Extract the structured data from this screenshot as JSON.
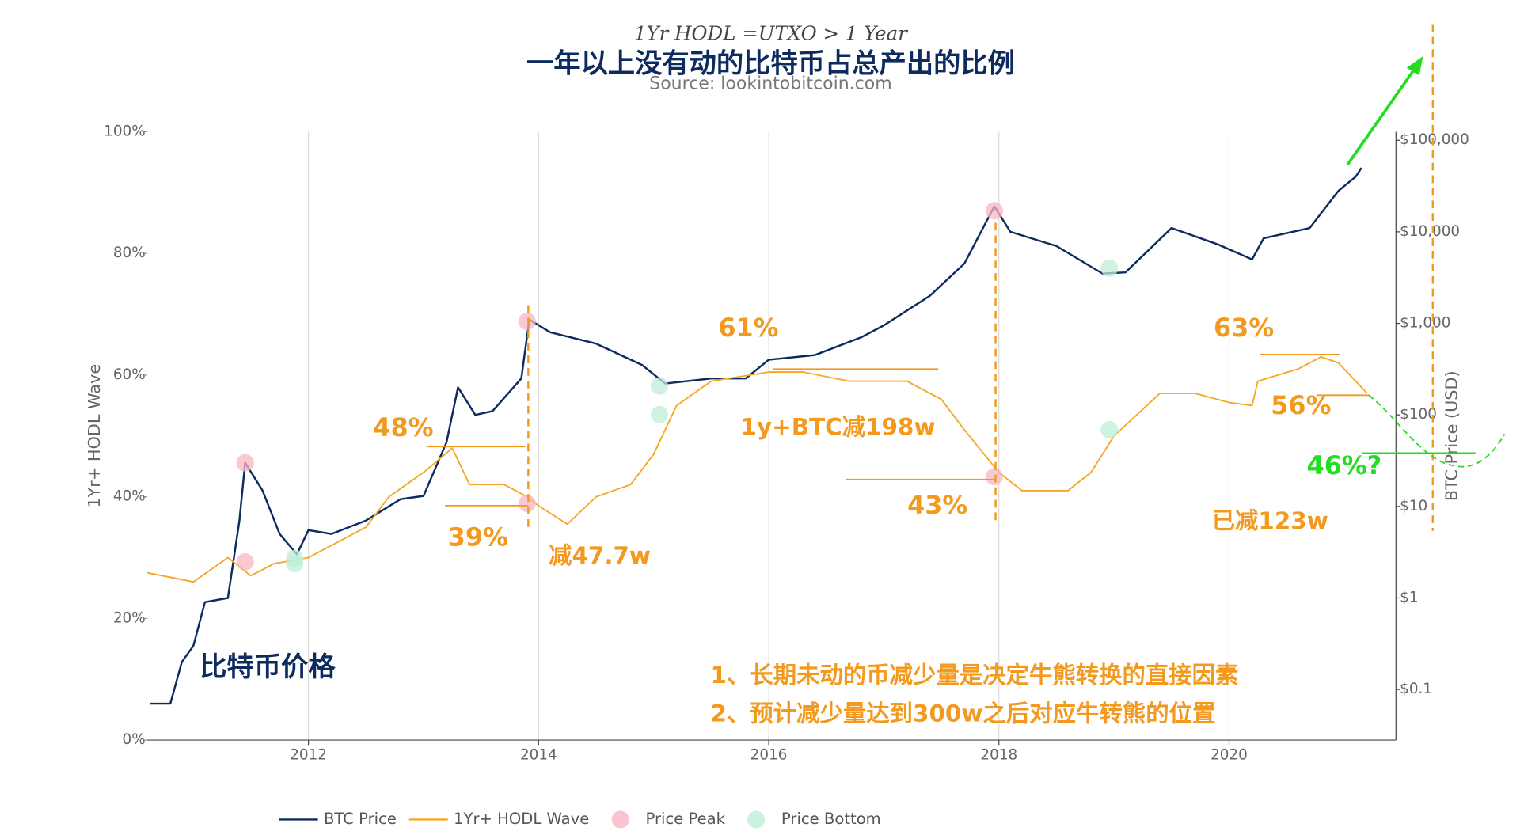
{
  "chart_data": {
    "type": "line",
    "formula": "1Yr HODL =UTXO > 1 Year",
    "title": "一年以上没有动的比特币占总产出的比例",
    "subtitle": "Source: lookintobitcoin.com",
    "ylabel": "1Yr+ HODL Wave",
    "y2label": "BTC Price (USD)",
    "xlim": [
      2010.6,
      2021.45
    ],
    "xticks": [
      2012,
      2014,
      2016,
      2018,
      2020
    ],
    "ylim": [
      0,
      100
    ],
    "yticks": [
      {
        "value": 0,
        "label": "0%"
      },
      {
        "value": 20,
        "label": "20%"
      },
      {
        "value": 40,
        "label": "40%"
      },
      {
        "value": 60,
        "label": "60%"
      },
      {
        "value": 80,
        "label": "80%"
      },
      {
        "value": 100,
        "label": "100%"
      }
    ],
    "y2lim": [
      0.028,
      124000
    ],
    "y2log": true,
    "y2ticks": [
      {
        "value": 0.1,
        "label": "$0.1"
      },
      {
        "value": 1,
        "label": "$1"
      },
      {
        "value": 10,
        "label": "$10"
      },
      {
        "value": 100,
        "label": "$100"
      },
      {
        "value": 1000,
        "label": "$1,000"
      },
      {
        "value": 10000,
        "label": "$10,000"
      },
      {
        "value": 100000,
        "label": "$100,000"
      }
    ],
    "grid": "x",
    "series": [
      {
        "name": "BTC Price",
        "color": "#0d2b5e",
        "axis": "y2",
        "x": [
          2010.62,
          2010.8,
          2010.9,
          2011.0,
          2011.1,
          2011.3,
          2011.4,
          2011.45,
          2011.6,
          2011.75,
          2011.9,
          2012.0,
          2012.2,
          2012.5,
          2012.8,
          2013.0,
          2013.2,
          2013.3,
          2013.45,
          2013.6,
          2013.85,
          2013.92,
          2014.1,
          2014.5,
          2014.9,
          2015.1,
          2015.5,
          2015.8,
          2016.0,
          2016.4,
          2016.8,
          2017.0,
          2017.4,
          2017.7,
          2017.96,
          2018.1,
          2018.5,
          2018.9,
          2019.1,
          2019.5,
          2019.9,
          2020.2,
          2020.3,
          2020.7,
          2020.95,
          2021.1,
          2021.15
        ],
        "values": [
          0.07,
          0.07,
          0.2,
          0.3,
          0.9,
          1.0,
          7,
          30,
          15,
          5,
          3,
          5.5,
          5,
          7,
          12,
          13,
          50,
          200,
          100,
          110,
          250,
          1100,
          800,
          600,
          350,
          220,
          250,
          250,
          400,
          450,
          700,
          950,
          2000,
          4500,
          19000,
          10000,
          7000,
          3500,
          3600,
          11000,
          7300,
          5000,
          8500,
          11000,
          28000,
          40000,
          50000
        ]
      },
      {
        "name": "1Yr+ HODL Wave",
        "color": "#f5a623",
        "axis": "y",
        "x": [
          2010.6,
          2011.0,
          2011.3,
          2011.5,
          2011.7,
          2012.0,
          2012.3,
          2012.5,
          2012.7,
          2013.0,
          2013.25,
          2013.4,
          2013.7,
          2013.9,
          2014.0,
          2014.25,
          2014.5,
          2014.8,
          2015.0,
          2015.2,
          2015.5,
          2016.0,
          2016.3,
          2016.7,
          2017.2,
          2017.5,
          2017.7,
          2018.0,
          2018.2,
          2018.6,
          2018.8,
          2019.0,
          2019.4,
          2019.7,
          2020.0,
          2020.2,
          2020.25,
          2020.6,
          2020.8,
          2020.95,
          2021.2
        ],
        "values": [
          27.5,
          26,
          30,
          27,
          29,
          30,
          33,
          35,
          40,
          44,
          48,
          42,
          42,
          40,
          38.5,
          35.5,
          40,
          42,
          47,
          55,
          59,
          60.5,
          60.5,
          59,
          59,
          56,
          51,
          44,
          41,
          41,
          44,
          50,
          57,
          57,
          55.5,
          55,
          59,
          61,
          63,
          62,
          57
        ]
      }
    ],
    "markers": [
      {
        "name": "Price Peak",
        "color": "#f7b6c2",
        "x": [
          2011.45,
          2011.45,
          2013.9,
          2013.9,
          2017.96,
          2017.96
        ],
        "values": [
          30,
          29.3,
          1050,
          38.9,
          17000,
          43.3
        ],
        "axes": [
          "y2",
          "y",
          "y2",
          "y",
          "y2",
          "y"
        ]
      },
      {
        "name": "Price Bottom",
        "color": "#bfeed7",
        "x": [
          2011.88,
          2011.88,
          2015.05,
          2015.05,
          2018.96,
          2018.96
        ],
        "values": [
          2.7,
          29,
          207,
          53.5,
          4000,
          51
        ],
        "axes": [
          "y2",
          "y",
          "y2",
          "y",
          "y2",
          "y"
        ]
      }
    ],
    "annotations": [
      "48%",
      "39%",
      "减47.7w",
      "61%",
      "1y+BTC减198w",
      "43%",
      "63%",
      "56%",
      "已减123w",
      "46%?",
      "比特币价格",
      "1、长期未动的币减少量是决定牛熊转换的直接因素",
      "2、预计减少量达到300w之后对应牛转熊的位置"
    ]
  }
}
